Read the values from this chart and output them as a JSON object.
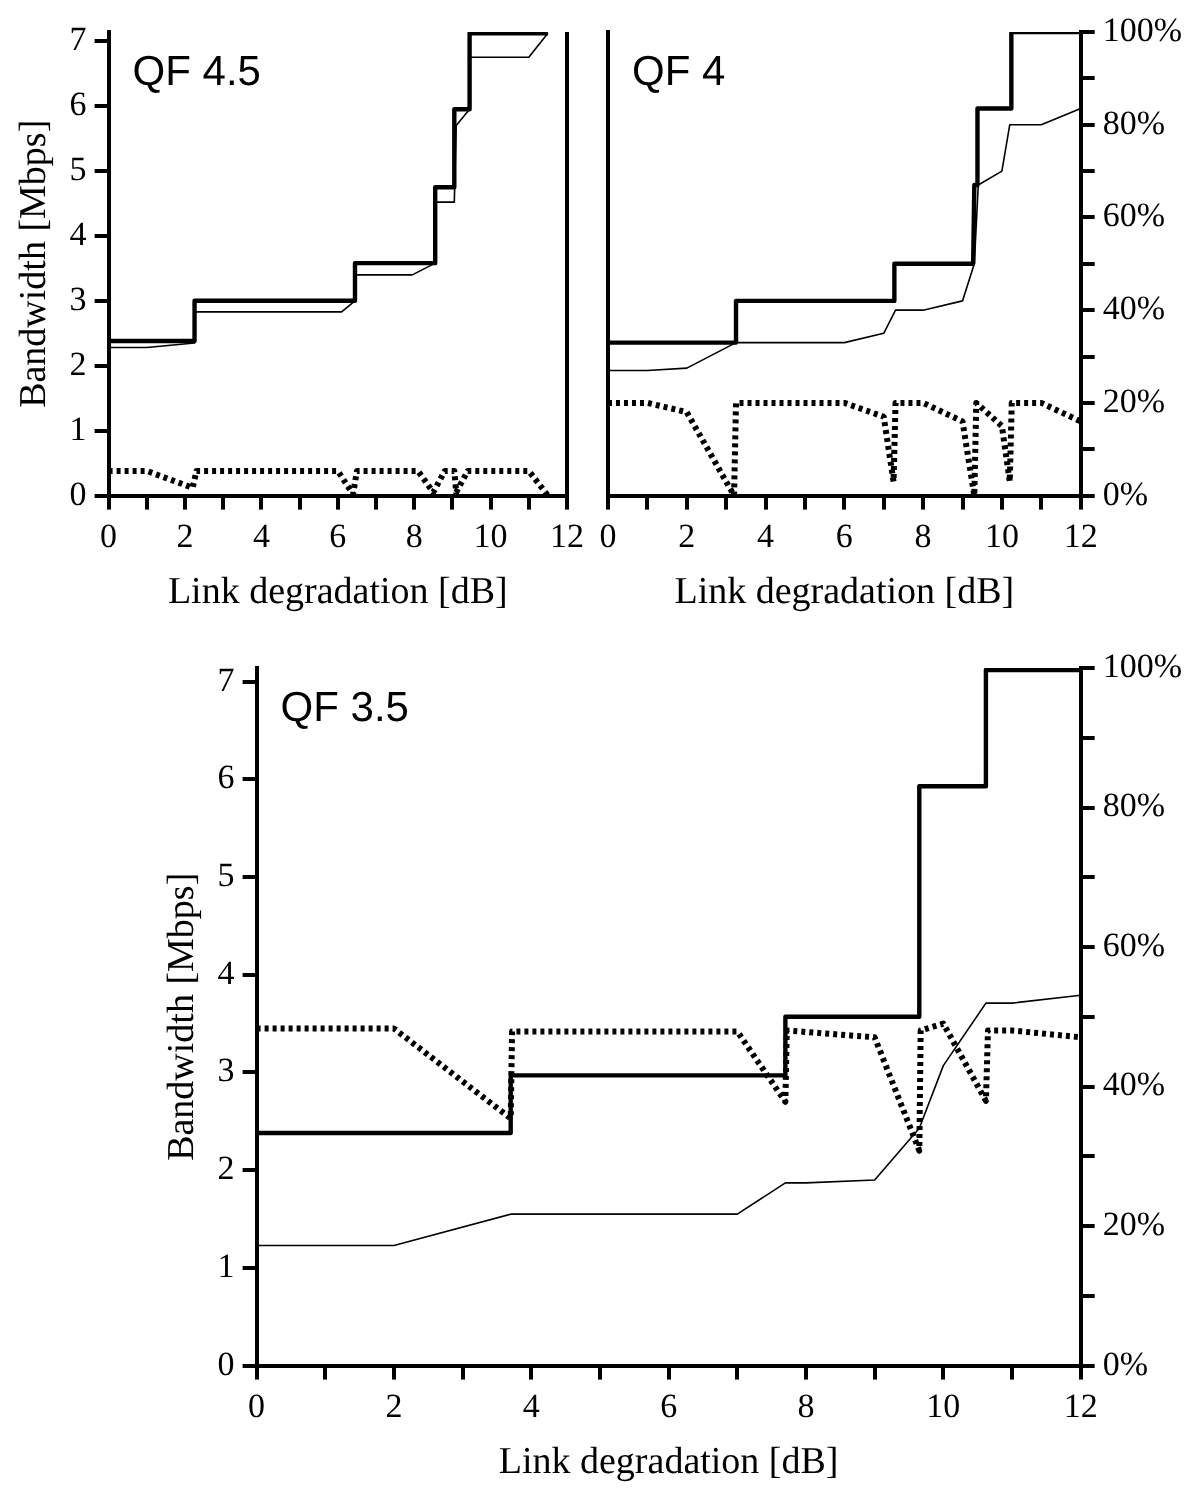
{
  "chart_data": [
    {
      "type": "line",
      "title": "QF 4.5",
      "xlabel": "Link degradation [dB]",
      "ylabel": "Bandwidth [Mbps]",
      "xlim": [
        0,
        12
      ],
      "xticks": [
        0,
        {
          "value": 1,
          "label": null
        },
        2,
        {
          "value": 3,
          "label": null
        },
        4,
        {
          "value": 5,
          "label": null
        },
        6,
        {
          "value": 7,
          "label": null
        },
        8,
        {
          "value": 9,
          "label": null
        },
        10,
        {
          "value": 11,
          "label": null
        },
        12
      ],
      "ylim": [
        0,
        7.14
      ],
      "yticks": [
        0,
        1,
        2,
        3,
        4,
        5,
        6,
        7
      ],
      "grid": false,
      "legend": false,
      "marker": "none",
      "series": [
        {
          "color": "#000000",
          "line_style": "solid",
          "x": [
            0,
            2.25,
            2.25,
            6.45,
            6.45,
            8.55,
            8.55,
            9.05,
            9.05,
            9.45,
            9.45,
            11.5
          ],
          "values": [
            2.38,
            2.38,
            3.0,
            3.0,
            3.58,
            3.58,
            4.75,
            4.75,
            5.95,
            5.95,
            7.12,
            7.12
          ]
        },
        {
          "color": "#000000",
          "line_style": "solid",
          "x": [
            0,
            1,
            2.25,
            2.25,
            6.1,
            6.45,
            6.45,
            7.95,
            8.55,
            8.55,
            9.05,
            9.1,
            9.45,
            9.45,
            11,
            11.5
          ],
          "values": [
            2.28,
            2.28,
            2.35,
            2.83,
            2.83,
            3.0,
            3.4,
            3.4,
            3.58,
            4.52,
            4.52,
            5.7,
            5.95,
            6.75,
            6.75,
            7.12
          ]
        },
        {
          "color": "#000000",
          "line_style": "dotted",
          "x": [
            0,
            1,
            2.2,
            2.3,
            6.0,
            6.4,
            6.5,
            8.1,
            8.5,
            8.8,
            9.05,
            9.1,
            9.4,
            11,
            11.5
          ],
          "values": [
            0.38,
            0.38,
            0.12,
            0.38,
            0.38,
            0.02,
            0.38,
            0.38,
            0.05,
            0.38,
            0.38,
            0.05,
            0.38,
            0.38,
            0
          ]
        }
      ]
    },
    {
      "type": "line",
      "title": "QF 4",
      "xlabel": "Link degradation [dB]",
      "xlim": [
        0,
        12
      ],
      "xticks": [
        0,
        {
          "value": 1,
          "label": null
        },
        2,
        {
          "value": 3,
          "label": null
        },
        4,
        {
          "value": 5,
          "label": null
        },
        6,
        {
          "value": 7,
          "label": null
        },
        8,
        {
          "value": 9,
          "label": null
        },
        10,
        {
          "value": 11,
          "label": null
        },
        12
      ],
      "y2lim": [
        0,
        100
      ],
      "y2ticks": [
        {
          "value": 0,
          "label": "0%"
        },
        {
          "value": 10,
          "label": null
        },
        {
          "value": 20,
          "label": "20%"
        },
        {
          "value": 30,
          "label": null
        },
        {
          "value": 40,
          "label": "40%"
        },
        {
          "value": 50,
          "label": null
        },
        {
          "value": 60,
          "label": "60%"
        },
        {
          "value": 70,
          "label": null
        },
        {
          "value": 80,
          "label": "80%"
        },
        {
          "value": 90,
          "label": null
        },
        {
          "value": 100,
          "label": "100%"
        }
      ],
      "grid": false,
      "legend": false,
      "marker": "none",
      "series": [
        {
          "color": "#000000",
          "line_style": "solid",
          "axis": "y2",
          "x": [
            0,
            3.25,
            3.25,
            7.27,
            7.27,
            9.27,
            9.3,
            9.38,
            9.38,
            10.24,
            10.24,
            12
          ],
          "values": [
            33,
            33,
            42,
            42,
            50,
            50,
            67,
            67,
            83.5,
            83.5,
            100,
            100
          ]
        },
        {
          "color": "#000000",
          "line_style": "solid",
          "axis": "y2",
          "x": [
            0,
            1,
            2,
            3.25,
            6,
            7,
            7.3,
            8,
            9,
            9.3,
            9.4,
            10,
            10.2,
            11,
            12
          ],
          "values": [
            27,
            27,
            27.5,
            33,
            33,
            35,
            40,
            40,
            42,
            50,
            67,
            70,
            80,
            80,
            83.5
          ]
        },
        {
          "color": "#000000",
          "line_style": "dotted",
          "axis": "y2",
          "x": [
            0,
            1,
            2,
            3.2,
            3.25,
            6,
            7,
            7.25,
            7.3,
            8,
            9,
            9.3,
            9.35,
            10,
            10.2,
            10.25,
            11,
            12
          ],
          "values": [
            20,
            20,
            18,
            0,
            20,
            20,
            17,
            3,
            20,
            20,
            16,
            0,
            20,
            15,
            3,
            20,
            20,
            16
          ]
        }
      ]
    },
    {
      "type": "line",
      "title": "QF 3.5",
      "xlabel": "Link degradation [dB]",
      "ylabel": "Bandwidth [Mbps]",
      "xlim": [
        0,
        12
      ],
      "xticks": [
        0,
        {
          "value": 1,
          "label": null
        },
        2,
        {
          "value": 3,
          "label": null
        },
        4,
        {
          "value": 5,
          "label": null
        },
        6,
        {
          "value": 7,
          "label": null
        },
        8,
        {
          "value": 9,
          "label": null
        },
        10,
        {
          "value": 11,
          "label": null
        },
        12
      ],
      "ylim": [
        0,
        7.14
      ],
      "yticks": [
        0,
        1,
        2,
        3,
        4,
        5,
        6,
        7
      ],
      "y2lim": [
        0,
        100
      ],
      "y2ticks": [
        {
          "value": 0,
          "label": "0%"
        },
        {
          "value": 10,
          "label": null
        },
        {
          "value": 20,
          "label": "20%"
        },
        {
          "value": 30,
          "label": null
        },
        {
          "value": 40,
          "label": "40%"
        },
        {
          "value": 50,
          "label": null
        },
        {
          "value": 60,
          "label": "60%"
        },
        {
          "value": 70,
          "label": null
        },
        {
          "value": 80,
          "label": "80%"
        },
        {
          "value": 90,
          "label": null
        },
        {
          "value": 100,
          "label": "100%"
        }
      ],
      "grid": false,
      "legend": false,
      "marker": "none",
      "series": [
        {
          "color": "#000000",
          "line_style": "solid",
          "x": [
            0,
            3.7,
            3.7,
            7.7,
            7.7,
            9.65,
            9.65,
            10.62,
            10.62,
            12
          ],
          "values": [
            2.38,
            2.38,
            2.97,
            2.97,
            3.57,
            3.57,
            5.93,
            5.93,
            7.12,
            7.12
          ]
        },
        {
          "color": "#000000",
          "line_style": "solid",
          "x": [
            0,
            2,
            3.7,
            7,
            7.7,
            8,
            9,
            9.65,
            10,
            10.62,
            11,
            12
          ],
          "values": [
            1.23,
            1.23,
            1.55,
            1.55,
            1.87,
            1.87,
            1.9,
            2.43,
            3.07,
            3.71,
            3.71,
            3.79
          ]
        },
        {
          "color": "#000000",
          "line_style": "dotted",
          "x": [
            0,
            2,
            3.7,
            3.72,
            7,
            7.7,
            7.72,
            9,
            9.65,
            9.67,
            10,
            10.62,
            10.65,
            11,
            12
          ],
          "values": [
            3.45,
            3.45,
            2.53,
            3.42,
            3.42,
            2.7,
            3.43,
            3.36,
            2.2,
            3.43,
            3.5,
            2.71,
            3.43,
            3.43,
            3.36
          ]
        }
      ]
    }
  ]
}
